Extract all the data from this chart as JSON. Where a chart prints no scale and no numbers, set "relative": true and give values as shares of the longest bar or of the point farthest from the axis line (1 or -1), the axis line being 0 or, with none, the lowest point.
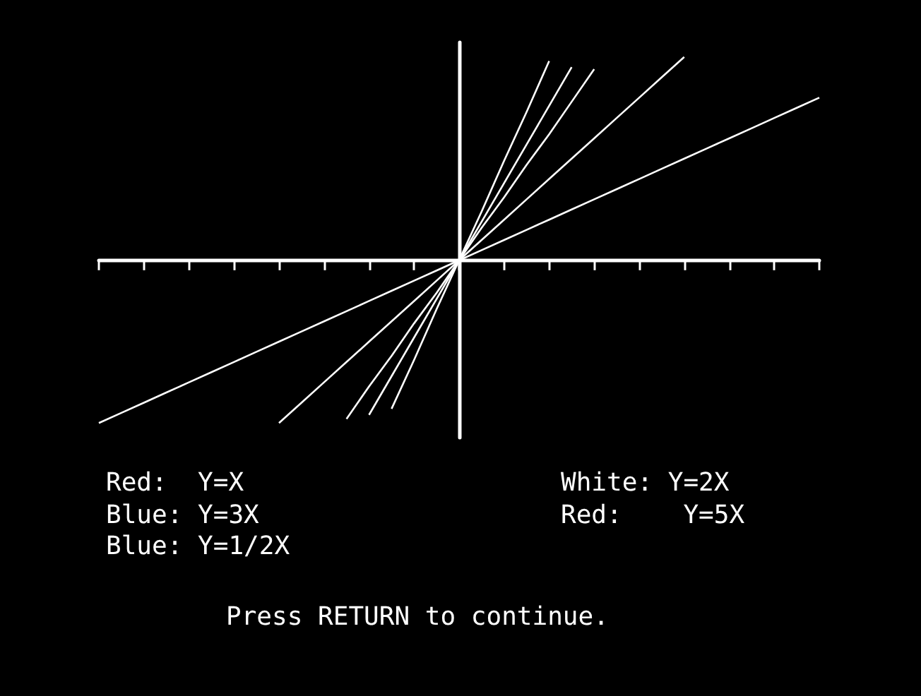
{
  "chart_data": {
    "type": "line",
    "relative": true,
    "grid": false,
    "marker": "none",
    "categories": [
      null,
      null,
      null,
      null,
      null,
      null,
      null,
      null,
      null,
      null,
      null,
      null,
      null,
      null,
      null,
      null,
      null,
      null,
      null,
      null,
      null,
      null,
      null,
      null,
      null,
      null,
      null,
      null,
      null,
      null,
      null,
      null,
      null
    ],
    "series": [
      {
        "color": "#ffffff",
        "values": [
          null,
          null,
          null,
          null,
          null,
          null,
          null,
          null,
          null,
          null,
          null,
          null,
          null,
          -0.73,
          -0.49,
          -0.24,
          0,
          0.24,
          0.49,
          0.73,
          0.98,
          null,
          null,
          null,
          null,
          null,
          null,
          null,
          null,
          null,
          null,
          null,
          null
        ]
      },
      {
        "color": "#ffffff",
        "values": [
          null,
          null,
          null,
          null,
          null,
          null,
          null,
          null,
          null,
          null,
          null,
          null,
          -0.76,
          -0.57,
          -0.38,
          -0.19,
          0,
          0.19,
          0.38,
          0.57,
          0.76,
          0.95,
          null,
          null,
          null,
          null,
          null,
          null,
          null,
          null,
          null,
          null,
          null
        ]
      },
      {
        "color": "#ffffff",
        "values": [
          null,
          null,
          null,
          null,
          null,
          null,
          null,
          null,
          null,
          null,
          null,
          -0.78,
          -0.62,
          -0.47,
          -0.31,
          -0.16,
          0,
          0.16,
          0.31,
          0.47,
          0.62,
          0.78,
          0.94,
          null,
          null,
          null,
          null,
          null,
          null,
          null,
          null,
          null,
          null
        ]
      },
      {
        "color": "#ffffff",
        "values": [
          null,
          null,
          null,
          null,
          null,
          null,
          null,
          null,
          -0.8,
          -0.7,
          -0.6,
          -0.5,
          -0.4,
          -0.3,
          -0.2,
          -0.1,
          0,
          0.1,
          0.2,
          0.3,
          0.4,
          0.5,
          0.6,
          0.7,
          0.8,
          0.9,
          1,
          null,
          null,
          null,
          null,
          null,
          null
        ]
      },
      {
        "color": "#ffffff",
        "values": [
          -0.8,
          -0.75,
          -0.7,
          -0.65,
          -0.6,
          -0.55,
          -0.5,
          -0.45,
          -0.4,
          -0.35,
          -0.3,
          -0.25,
          -0.2,
          -0.15,
          -0.1,
          -0.05,
          0,
          0.05,
          0.1,
          0.15,
          0.2,
          0.25,
          0.3,
          0.35,
          0.4,
          0.45,
          0.5,
          0.55,
          0.6,
          0.65,
          0.7,
          0.75,
          0.8
        ]
      }
    ],
    "annotations": [
      "Red:  Y=X",
      "Blue: Y=3X",
      "Blue: Y=1/2X",
      "White: Y=2X",
      "Red:    Y=5X",
      "Press RETURN to continue."
    ]
  }
}
